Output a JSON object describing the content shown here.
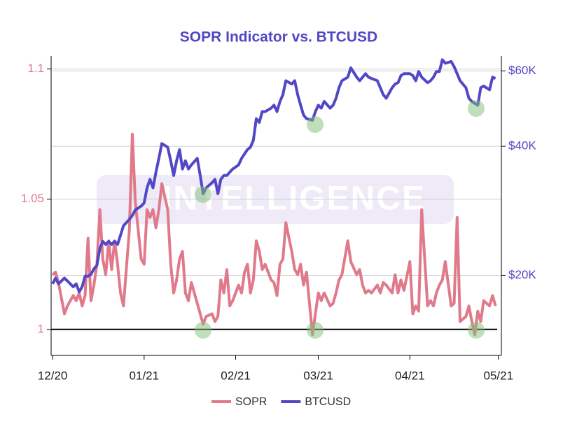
{
  "chart_data": {
    "type": "line",
    "title": "SOPR Indicator vs. BTCUSD",
    "watermark": "INTELLIGENCE",
    "x": [
      0,
      1,
      2,
      4,
      5,
      7,
      8,
      9,
      10,
      11,
      12,
      13,
      14,
      15,
      16,
      17,
      18,
      19,
      20,
      21,
      22,
      23,
      24,
      26,
      27,
      28,
      30,
      31,
      32,
      33,
      34,
      35,
      36,
      37,
      39,
      40,
      41,
      42,
      43,
      44,
      45,
      46,
      47,
      49,
      50,
      51,
      52,
      54,
      55,
      56,
      57,
      58,
      59,
      60,
      61,
      63,
      64,
      65,
      66,
      67,
      68,
      69,
      70,
      71,
      72,
      74,
      75,
      76,
      77,
      78,
      79,
      81,
      82,
      83,
      84,
      85,
      86,
      88,
      89,
      90,
      91,
      92,
      94,
      95,
      96,
      97,
      98,
      100,
      101,
      103,
      104,
      105,
      106,
      107,
      108,
      110,
      111,
      112,
      113,
      115,
      116,
      117,
      118,
      119,
      121,
      122,
      123,
      124,
      125,
      127,
      128,
      129,
      130,
      131,
      132,
      133,
      135,
      136,
      137,
      138,
      140,
      141,
      142,
      143,
      144,
      145,
      146,
      148,
      149,
      150
    ],
    "xlim": [
      -0.5,
      152
    ],
    "xticks": [
      {
        "value": 0,
        "label": "12/20"
      },
      {
        "value": 31,
        "label": "01/21"
      },
      {
        "value": 62,
        "label": "02/21"
      },
      {
        "value": 90,
        "label": "03/21"
      },
      {
        "value": 121,
        "label": "04/21"
      },
      {
        "value": 151,
        "label": "05/21"
      }
    ],
    "ylim": [
      0.99,
      1.105
    ],
    "yticks": [
      1,
      1.05,
      1.1
    ],
    "y2lim": [
      13000,
      65000
    ],
    "y2scale": "log",
    "y2ticks": [
      {
        "value": 20000,
        "label": "$20K"
      },
      {
        "value": 40000,
        "label": "$40K"
      },
      {
        "value": 60000,
        "label": "$60K"
      }
    ],
    "grid": true,
    "baseline": 1,
    "legend": "bottom",
    "series": [
      {
        "name": "SOPR",
        "color": "#e07a8b",
        "axis": "y",
        "values": [
          1.021,
          1.022,
          1.018,
          1.006,
          1.009,
          1.013,
          1.011,
          1.014,
          1.009,
          1.013,
          1.035,
          1.011,
          1.017,
          1.025,
          1.046,
          1.027,
          1.021,
          1.034,
          1.023,
          1.034,
          1.025,
          1.014,
          1.009,
          1.038,
          1.075,
          1.049,
          1.027,
          1.025,
          1.046,
          1.043,
          1.046,
          1.039,
          1.046,
          1.056,
          1.046,
          1.025,
          1.014,
          1.019,
          1.027,
          1.03,
          1.014,
          1.011,
          1.018,
          1.01,
          1.006,
          1.002,
          1.005,
          1.006,
          1.003,
          1.005,
          1.019,
          1.014,
          1.023,
          1.009,
          1.011,
          1.017,
          1.014,
          1.022,
          1.025,
          1.014,
          1.019,
          1.034,
          1.03,
          1.023,
          1.025,
          1.019,
          1.018,
          1.013,
          1.025,
          1.027,
          1.041,
          1.03,
          1.023,
          1.021,
          1.025,
          1.017,
          1.022,
          0.998,
          1.006,
          1.014,
          1.011,
          1.014,
          1.009,
          1.01,
          1.014,
          1.019,
          1.021,
          1.034,
          1.026,
          1.021,
          1.023,
          1.017,
          1.014,
          1.015,
          1.014,
          1.017,
          1.014,
          1.018,
          1.017,
          1.014,
          1.021,
          1.014,
          1.019,
          1.015,
          1.026,
          1.006,
          1.009,
          1.007,
          1.046,
          1.009,
          1.011,
          1.009,
          1.014,
          1.017,
          1.019,
          1.026,
          1.009,
          1.01,
          1.043,
          1.003,
          1.005,
          1.009,
          1.003,
          0.998,
          1.007,
          1.003,
          1.011,
          1.009,
          1.013,
          1.009
        ]
      },
      {
        "name": "BTCUSD",
        "color": "#5247c6",
        "axis": "y2",
        "values": [
          19100,
          19700,
          19100,
          19700,
          19400,
          18800,
          19100,
          18300,
          18800,
          19900,
          19900,
          20100,
          20700,
          21100,
          23100,
          24000,
          23600,
          24000,
          23600,
          24000,
          23600,
          24800,
          26100,
          27000,
          27600,
          28400,
          29000,
          29500,
          32000,
          33500,
          32000,
          34800,
          37500,
          40600,
          39800,
          37000,
          34200,
          37000,
          39300,
          35400,
          37000,
          35400,
          36200,
          37500,
          34200,
          31000,
          32000,
          32900,
          33500,
          31000,
          33500,
          34200,
          34200,
          34800,
          35400,
          36200,
          37500,
          38400,
          39300,
          39800,
          41300,
          46400,
          45500,
          48200,
          48200,
          49100,
          49900,
          48200,
          50900,
          52800,
          56900,
          55900,
          56900,
          52800,
          49900,
          47300,
          46400,
          46000,
          48200,
          49900,
          49100,
          50900,
          49100,
          49900,
          51800,
          54800,
          56900,
          58000,
          61000,
          58000,
          56900,
          58000,
          59100,
          58000,
          57600,
          56900,
          54800,
          52800,
          51800,
          54800,
          55900,
          56300,
          58500,
          59100,
          59100,
          58500,
          56900,
          59800,
          58000,
          56300,
          56900,
          58000,
          59800,
          59800,
          63700,
          62500,
          63100,
          61400,
          59100,
          56900,
          54800,
          51800,
          50900,
          50400,
          49900,
          54800,
          55300,
          54200,
          58000,
          57600
        ]
      }
    ]
  }
}
